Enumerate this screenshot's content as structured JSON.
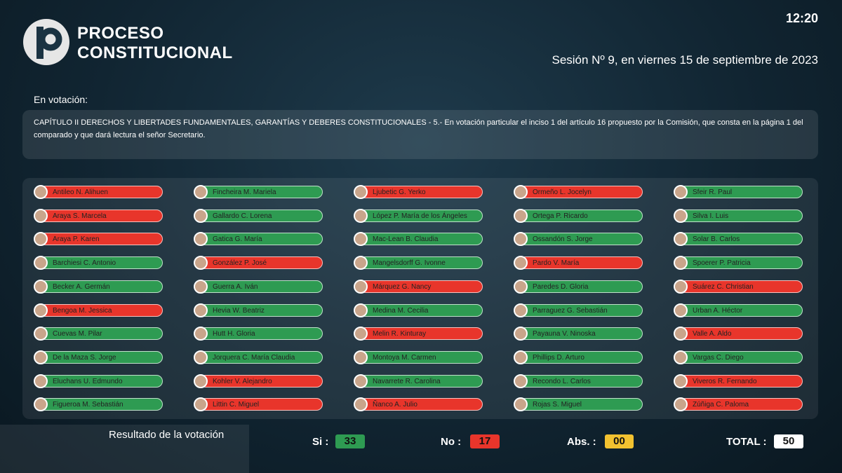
{
  "header": {
    "logo_lines": [
      "PROCESO",
      "CONSTITUCIONAL"
    ],
    "time": "12:20",
    "session": "Sesión Nº 9, en viernes 15 de septiembre de 2023"
  },
  "voting": {
    "label": "En votación:",
    "description": "CAPÍTULO II DERECHOS Y LIBERTADES FUNDAMENTALES, GARANTÍAS Y DEBERES CONSTITUCIONALES - 5.- En votación particular el inciso 1 del artículo 16 propuesto por la Comisión, que consta en la página 1 del comparado y que dará lectura el señor Secretario."
  },
  "members": [
    {
      "name": "Antileo N. Alihuen",
      "color": "#e8352b"
    },
    {
      "name": "Araya S. Marcela",
      "color": "#e8352b"
    },
    {
      "name": "Araya P. Karen",
      "color": "#e8352b"
    },
    {
      "name": "Barchiesi C. Antonio",
      "color": "#2e9b52"
    },
    {
      "name": "Becker A. Germán",
      "color": "#2e9b52"
    },
    {
      "name": "Bengoa M. Jessica",
      "color": "#e8352b"
    },
    {
      "name": "Cuevas M. Pilar",
      "color": "#2e9b52"
    },
    {
      "name": "De la Maza S. Jorge",
      "color": "#2e9b52"
    },
    {
      "name": "Eluchans U. Edmundo",
      "color": "#2e9b52"
    },
    {
      "name": "Figueroa M. Sebastián",
      "color": "#2e9b52"
    },
    {
      "name": "Fincheira M. Mariela",
      "color": "#2e9b52"
    },
    {
      "name": "Gallardo C. Lorena",
      "color": "#2e9b52"
    },
    {
      "name": "Gatica G. María",
      "color": "#2e9b52"
    },
    {
      "name": "González P. José",
      "color": "#e8352b"
    },
    {
      "name": "Guerra A. Iván",
      "color": "#2e9b52"
    },
    {
      "name": "Hevia W. Beatriz",
      "color": "#2e9b52"
    },
    {
      "name": "Hutt H. Gloria",
      "color": "#2e9b52"
    },
    {
      "name": "Jorquera C. María Claudia",
      "color": "#2e9b52"
    },
    {
      "name": "Kohler V. Alejandro",
      "color": "#e8352b"
    },
    {
      "name": "Littin C. Miguel",
      "color": "#e8352b"
    },
    {
      "name": "Ljubetic G. Yerko",
      "color": "#e8352b"
    },
    {
      "name": "López P. María de los Ángeles",
      "color": "#2e9b52"
    },
    {
      "name": "Mac-Lean B. Claudia",
      "color": "#2e9b52"
    },
    {
      "name": "Mangelsdorff G. Ivonne",
      "color": "#2e9b52"
    },
    {
      "name": "Márquez G. Nancy",
      "color": "#e8352b"
    },
    {
      "name": "Medina M. Cecilia",
      "color": "#2e9b52"
    },
    {
      "name": "Melin R. Kinturay",
      "color": "#e8352b"
    },
    {
      "name": "Montoya M. Carmen",
      "color": "#2e9b52"
    },
    {
      "name": "Navarrete R. Carolina",
      "color": "#2e9b52"
    },
    {
      "name": "Ñanco A. Julio",
      "color": "#e8352b"
    },
    {
      "name": "Ormeño L. Jocelyn",
      "color": "#e8352b"
    },
    {
      "name": "Ortega P. Ricardo",
      "color": "#2e9b52"
    },
    {
      "name": "Ossandón S. Jorge",
      "color": "#2e9b52"
    },
    {
      "name": "Pardo V. María",
      "color": "#e8352b"
    },
    {
      "name": "Paredes D. Gloria",
      "color": "#2e9b52"
    },
    {
      "name": "Parraguez G. Sebastián",
      "color": "#2e9b52"
    },
    {
      "name": "Payauna V. Ninoska",
      "color": "#2e9b52"
    },
    {
      "name": "Phillips D. Arturo",
      "color": "#2e9b52"
    },
    {
      "name": "Recondo L. Carlos",
      "color": "#2e9b52"
    },
    {
      "name": "Rojas S. Miguel",
      "color": "#2e9b52"
    },
    {
      "name": "Sfeir R. Paul",
      "color": "#2e9b52"
    },
    {
      "name": "Silva I. Luis",
      "color": "#2e9b52"
    },
    {
      "name": "Solar B. Carlos",
      "color": "#2e9b52"
    },
    {
      "name": "Spoerer P. Patricia",
      "color": "#2e9b52"
    },
    {
      "name": "Suárez C. Christian",
      "color": "#e8352b"
    },
    {
      "name": "Urban A. Héctor",
      "color": "#2e9b52"
    },
    {
      "name": "Valle A. Aldo",
      "color": "#e8352b"
    },
    {
      "name": "Vargas C. Diego",
      "color": "#2e9b52"
    },
    {
      "name": "Viveros R. Fernando",
      "color": "#e8352b"
    },
    {
      "name": "Zúñiga C. Paloma",
      "color": "#e8352b"
    }
  ],
  "results": {
    "title": "Resultado de la votación",
    "items": [
      {
        "label": "Si :",
        "count": "33",
        "color": "#2e9b52"
      },
      {
        "label": "No :",
        "count": "17",
        "color": "#e8352b"
      },
      {
        "label": "Abs. :",
        "count": "00",
        "color": "#f2c230"
      },
      {
        "label": "TOTAL :",
        "count": "50",
        "color": "#ffffff"
      }
    ]
  }
}
